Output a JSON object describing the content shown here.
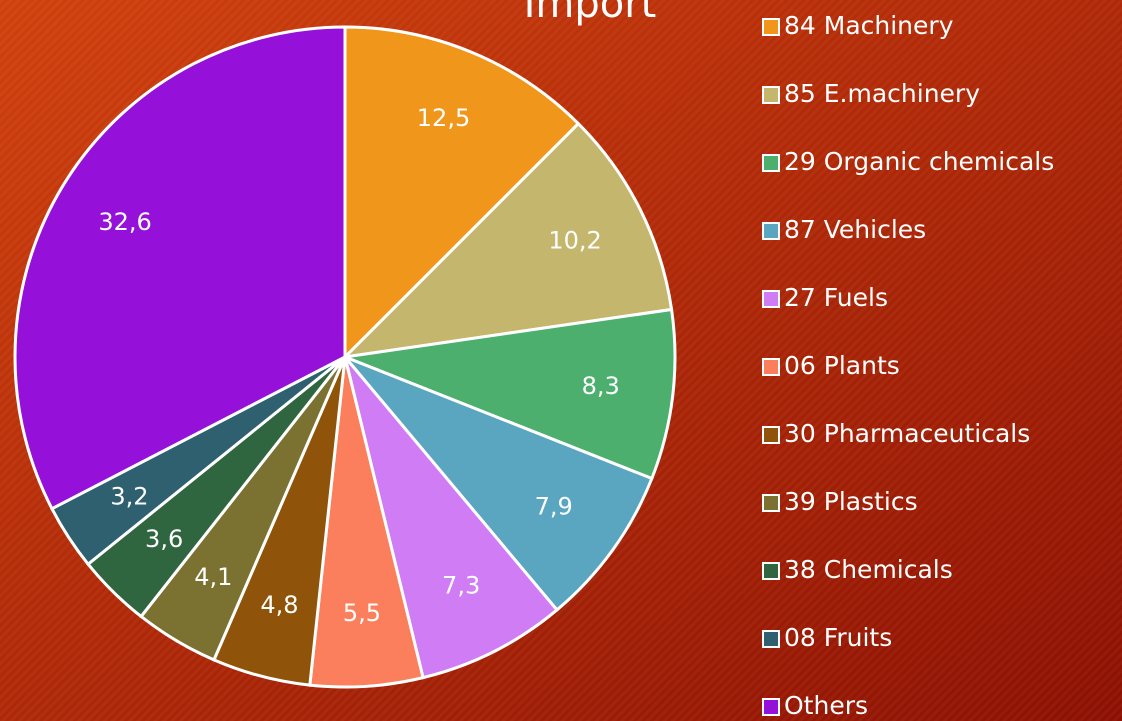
{
  "chart_data": {
    "type": "pie",
    "title": "Import",
    "categories": [
      "84 Machinery",
      "85 E.machinery",
      "29 Organic chemicals",
      "87 Vehicles",
      "27 Fuels",
      "06 Plants",
      "30 Pharmaceuticals",
      "39 Plastics",
      "38 Chemicals",
      "08 Fruits",
      "Others"
    ],
    "values": [
      12.5,
      10.2,
      8.3,
      7.9,
      7.3,
      5.5,
      4.8,
      4.1,
      3.6,
      3.2,
      32.6
    ],
    "value_labels": [
      "12,5",
      "10,2",
      "8,3",
      "7,9",
      "7,3",
      "5,5",
      "4,8",
      "4,1",
      "3,6",
      "3,2",
      "32,6"
    ],
    "colors": [
      "#f0961a",
      "#c4b66c",
      "#4caf6e",
      "#5aa5c0",
      "#d07cf5",
      "#fb7f5c",
      "#8f5409",
      "#7b7232",
      "#2f6640",
      "#2f6070",
      "#9510d8"
    ],
    "legend": "right"
  }
}
